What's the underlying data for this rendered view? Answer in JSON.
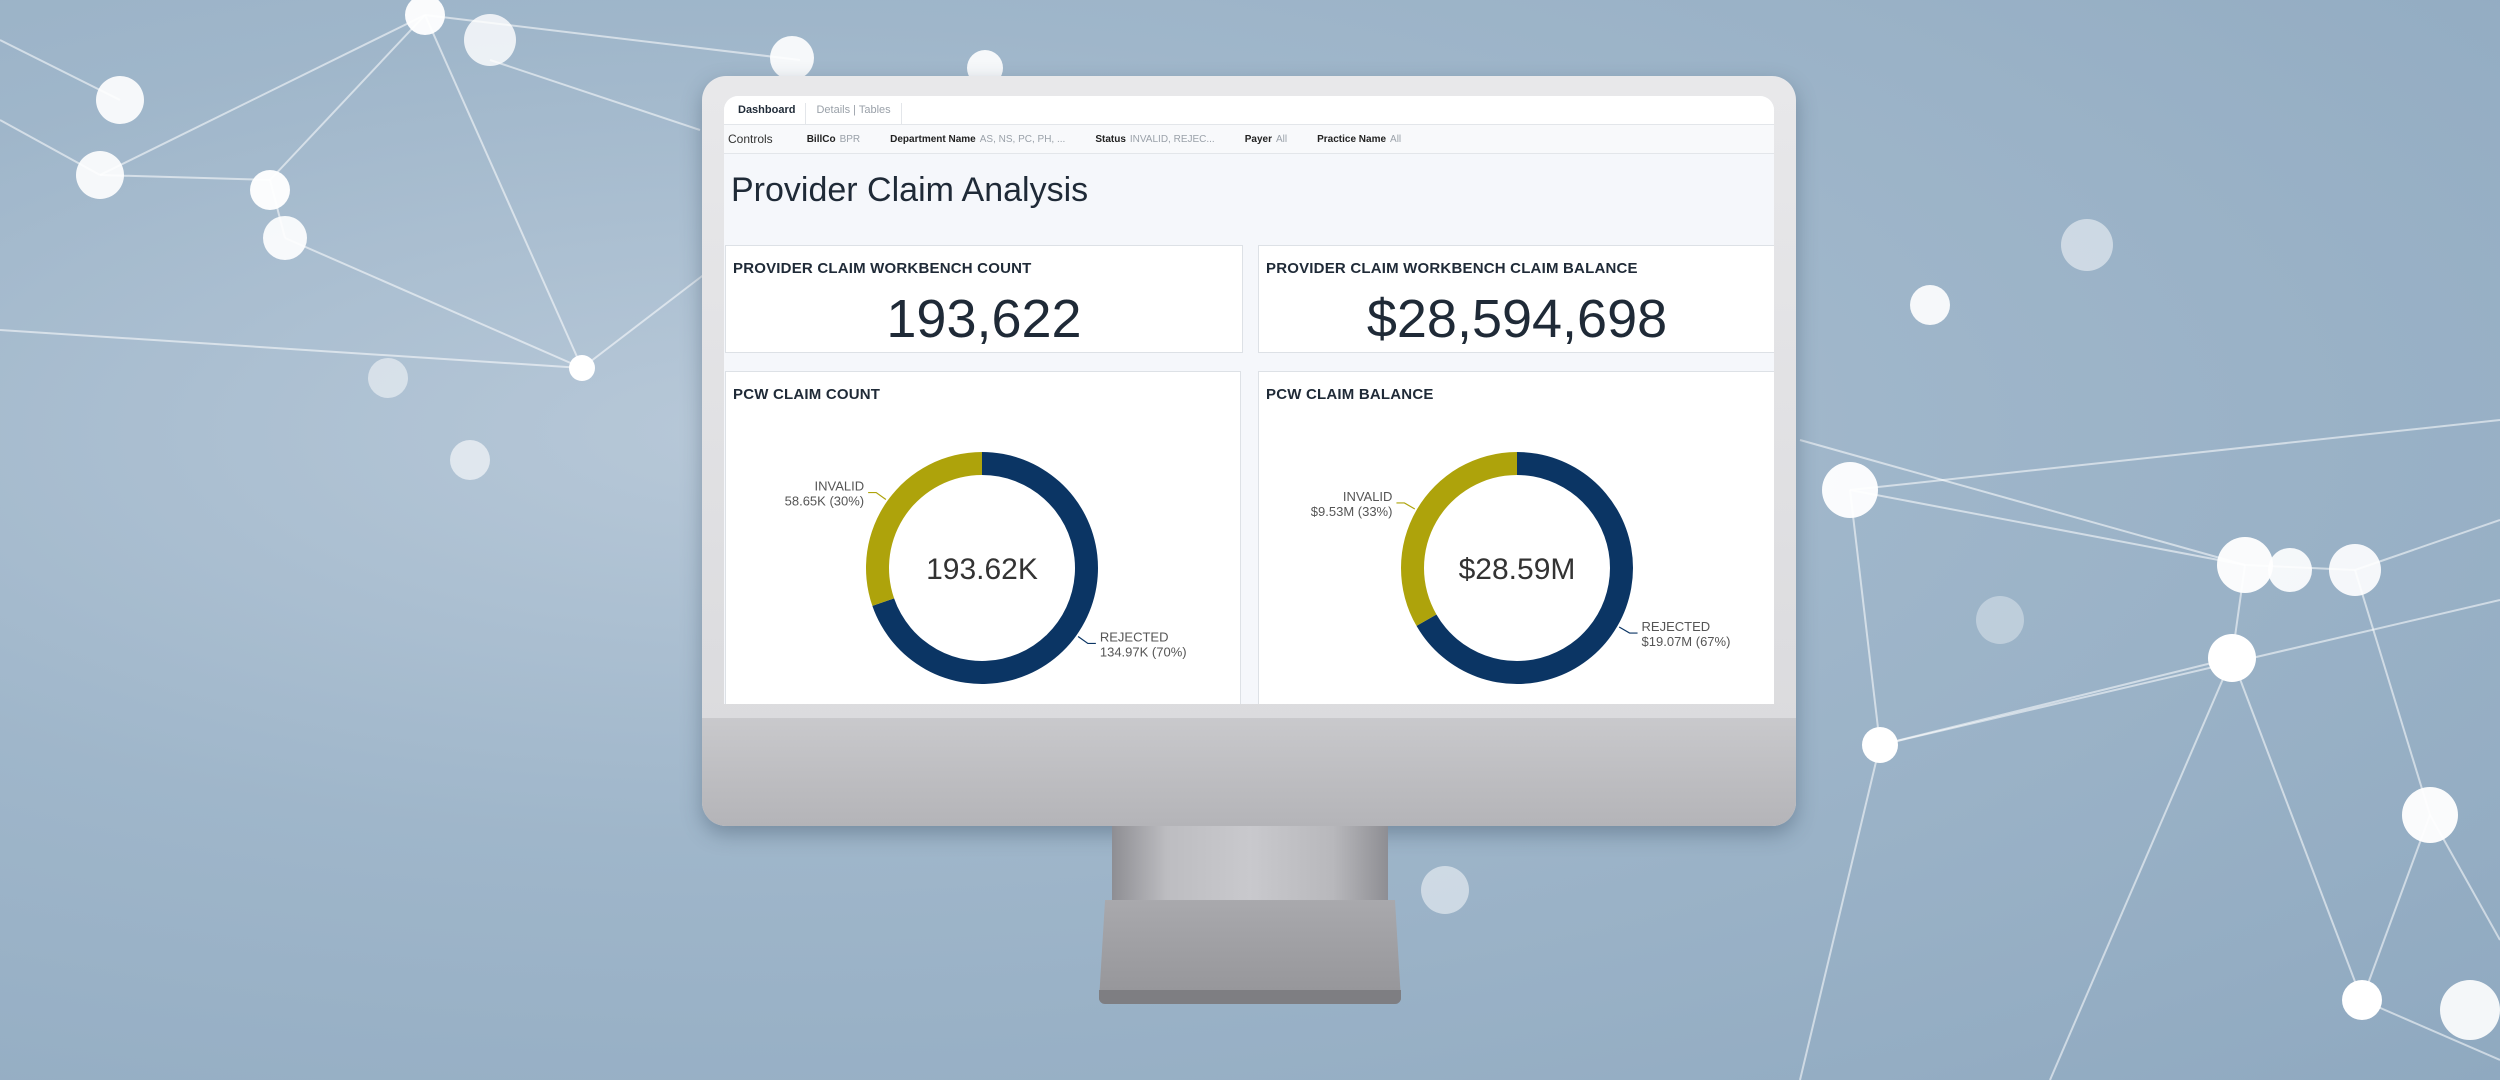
{
  "tabs": [
    {
      "label": "Dashboard",
      "active": true
    },
    {
      "label": "Details | Tables",
      "active": false
    }
  ],
  "controls": {
    "label": "Controls",
    "filters": [
      {
        "name": "BillCo",
        "value": "BPR"
      },
      {
        "name": "Department Name",
        "value": "AS, NS, PC, PH, ..."
      },
      {
        "name": "Status",
        "value": "INVALID, REJEC..."
      },
      {
        "name": "Payer",
        "value": "All"
      },
      {
        "name": "Practice Name",
        "value": "All"
      }
    ]
  },
  "page_title": "Provider Claim Analysis",
  "kpis": [
    {
      "title": "PROVIDER CLAIM WORKBENCH COUNT",
      "value": "193,622"
    },
    {
      "title": "PROVIDER CLAIM WORKBENCH CLAIM BALANCE",
      "value": "$28,594,698"
    }
  ],
  "colors": {
    "rejected": "#0b3564",
    "invalid": "#aea30b"
  },
  "chart_data": [
    {
      "type": "pie",
      "title": "PCW CLAIM COUNT",
      "center_label": "193.62K",
      "slices": [
        {
          "name": "REJECTED",
          "value": 134970,
          "label": "134.97K (70%)",
          "percent": 70
        },
        {
          "name": "INVALID",
          "value": 58650,
          "label": "58.65K (30%)",
          "percent": 30
        }
      ]
    },
    {
      "type": "pie",
      "title": "PCW CLAIM BALANCE",
      "center_label": "$28.59M",
      "slices": [
        {
          "name": "REJECTED",
          "value": 19070000,
          "label": "$19.07M (67%)",
          "percent": 67
        },
        {
          "name": "INVALID",
          "value": 9530000,
          "label": "$9.53M (33%)",
          "percent": 33
        }
      ]
    }
  ]
}
